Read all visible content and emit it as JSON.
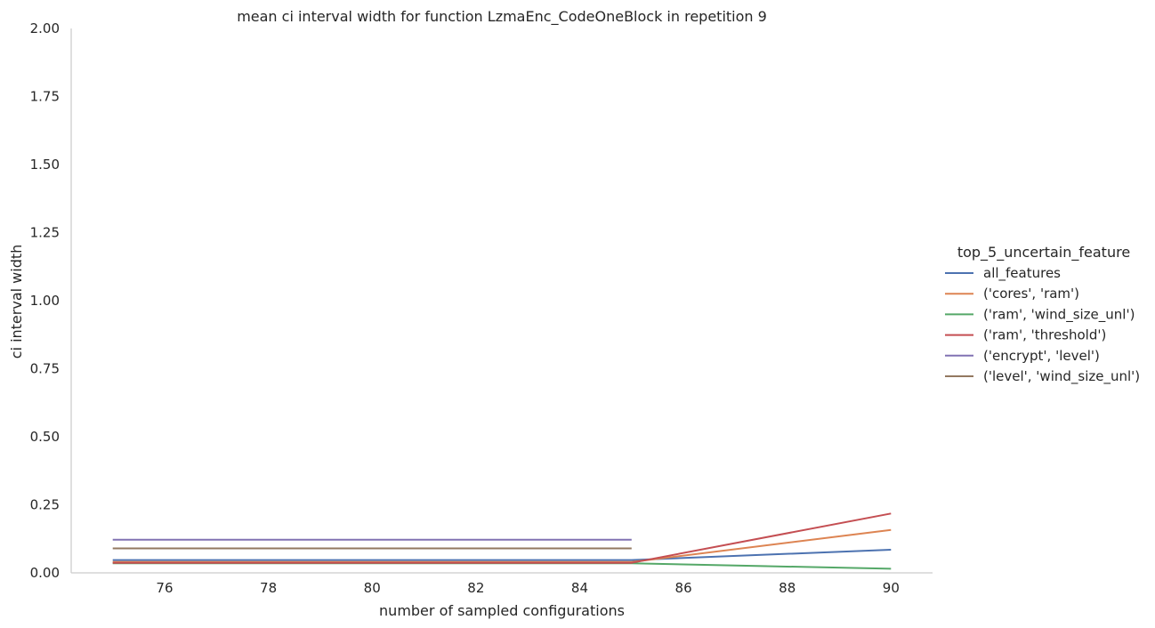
{
  "chart_data": {
    "type": "line",
    "title": "mean ci interval width for function LzmaEnc_CodeOneBlock in repetition 9",
    "xlabel": "number of sampled configurations",
    "ylabel": "ci interval width",
    "xlim": [
      74.2,
      90.8
    ],
    "ylim": [
      0,
      2
    ],
    "xticks": [
      76,
      78,
      80,
      82,
      84,
      86,
      88,
      90
    ],
    "xtick_labels": [
      "76",
      "78",
      "80",
      "82",
      "84",
      "86",
      "88",
      "90"
    ],
    "yticks": [
      0,
      0.25,
      0.5,
      0.75,
      1.0,
      1.25,
      1.5,
      1.75,
      2.0
    ],
    "ytick_labels": [
      "0.00",
      "0.25",
      "0.50",
      "0.75",
      "1.00",
      "1.25",
      "1.50",
      "1.75",
      "2.00"
    ],
    "grid": false,
    "legend": {
      "title": "top_5_uncertain_feature",
      "placement": "right"
    },
    "series": [
      {
        "name": "all_features",
        "color": "#4c72b0",
        "x": [
          75,
          85,
          90
        ],
        "y": [
          0.047,
          0.047,
          0.085
        ]
      },
      {
        "name": "('cores', 'ram')",
        "color": "#dd8452",
        "x": [
          75,
          85,
          90
        ],
        "y": [
          0.04,
          0.04,
          0.158
        ]
      },
      {
        "name": "('ram', 'wind_size_unl')",
        "color": "#55a868",
        "x": [
          75,
          85,
          90
        ],
        "y": [
          0.035,
          0.035,
          0.015
        ]
      },
      {
        "name": "('ram', 'threshold')",
        "color": "#c44e52",
        "x": [
          75,
          85,
          90
        ],
        "y": [
          0.037,
          0.037,
          0.218
        ]
      },
      {
        "name": "('encrypt', 'level')",
        "color": "#8172b3",
        "x": [
          75,
          85
        ],
        "y": [
          0.122,
          0.122
        ]
      },
      {
        "name": "('level', 'wind_size_unl')",
        "color": "#937860",
        "x": [
          75,
          85
        ],
        "y": [
          0.09,
          0.09
        ]
      }
    ]
  }
}
